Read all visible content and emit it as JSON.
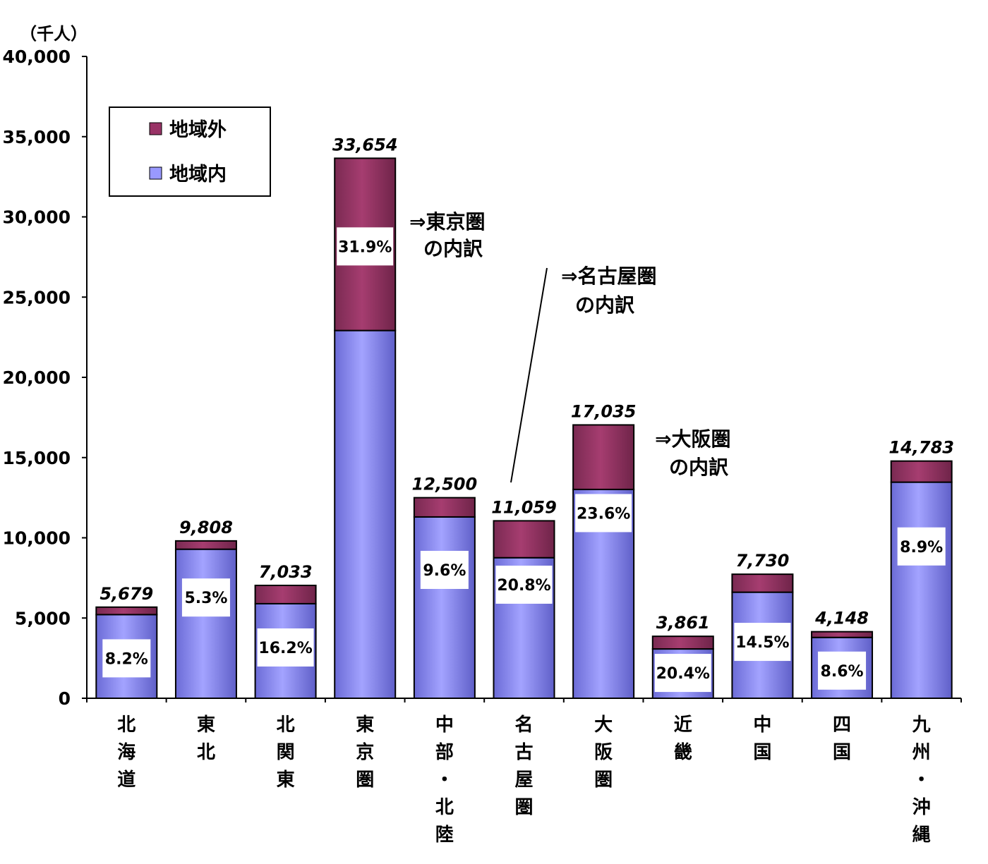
{
  "chart_data": {
    "type": "bar",
    "stacked": true,
    "unit_label": "（千人）",
    "ylim": [
      0,
      40000
    ],
    "yticks": [
      0,
      5000,
      10000,
      15000,
      20000,
      25000,
      30000,
      35000,
      40000
    ],
    "ytick_labels": [
      "0",
      "5,000",
      "10,000",
      "15,000",
      "20,000",
      "25,000",
      "30,000",
      "35,000",
      "40,000"
    ],
    "categories": [
      "北海道",
      "東北",
      "北関東",
      "東京圏",
      "中部・北陸",
      "名古屋圏",
      "大阪圏",
      "近畿",
      "中国",
      "四国",
      "九州・沖縄"
    ],
    "series": [
      {
        "name": "地域内",
        "color": "#9999ff",
        "values": [
          5213,
          9288,
          5894,
          22918,
          11300,
          8759,
          13015,
          3073,
          6609,
          3791,
          13467
        ]
      },
      {
        "name": "地域外",
        "color": "#993366",
        "values": [
          466,
          520,
          1139,
          10736,
          1200,
          2300,
          4020,
          788,
          1121,
          357,
          1316
        ]
      }
    ],
    "totals": [
      5679,
      9808,
      7033,
      33654,
      12500,
      11059,
      17035,
      3861,
      7730,
      4148,
      14783
    ],
    "total_labels": [
      "5,679",
      "9,808",
      "7,033",
      "33,654",
      "12,500",
      "11,059",
      "17,035",
      "3,861",
      "7,730",
      "4,148",
      "14,783"
    ],
    "pct_labels": [
      "8.2%",
      "5.3%",
      "16.2%",
      "31.9%",
      "9.6%",
      "20.8%",
      "23.6%",
      "20.4%",
      "14.5%",
      "8.6%",
      "8.9%"
    ],
    "legend": {
      "position": "top-left",
      "entries": [
        "地域外",
        "地域内"
      ]
    },
    "annotations": [
      {
        "lines": [
          "⇒東京圏",
          "の内訳"
        ]
      },
      {
        "lines": [
          "⇒名古屋圏",
          "の内訳"
        ]
      },
      {
        "lines": [
          "⇒大阪圏",
          "の内訳"
        ]
      }
    ],
    "grid": false
  }
}
